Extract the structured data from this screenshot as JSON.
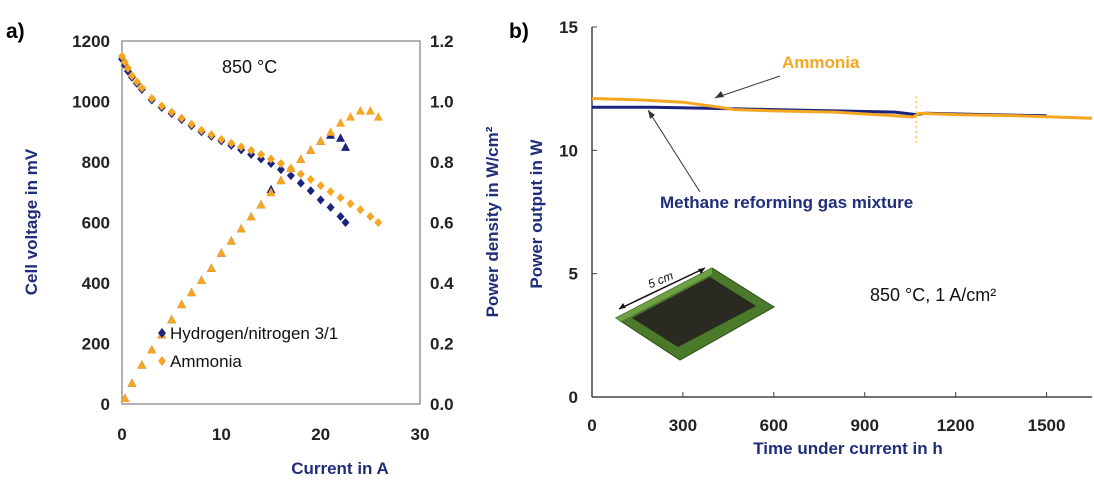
{
  "chart_data": [
    {
      "type": "scatter",
      "panel_label": "a)",
      "annotation": "850 °C",
      "xlabel": "Current in A",
      "ylabel": "Cell voltage in mV",
      "y2label": "Power density in W/cm²",
      "xlim": [
        0,
        30
      ],
      "ylim": [
        0,
        1200
      ],
      "y2lim": [
        0.0,
        1.2
      ],
      "xticks": [
        "0",
        "10",
        "20",
        "30"
      ],
      "yticks": [
        "0",
        "200",
        "400",
        "600",
        "800",
        "1000",
        "1200"
      ],
      "y2ticks": [
        "0.0",
        "0.2",
        "0.4",
        "0.6",
        "0.8",
        "1.0",
        "1.2"
      ],
      "legend_position": "bottom-left",
      "colors": {
        "hydrogen": "#1a237e",
        "ammonia": "#f5a623"
      },
      "series": [
        {
          "name": "Hydrogen/nitrogen 3/1",
          "axis": "left",
          "marker": "diamond",
          "color": "#1a237e",
          "x": [
            0,
            0.3,
            0.6,
            1,
            1.5,
            2,
            3,
            4,
            5,
            6,
            7,
            8,
            9,
            10,
            11,
            12,
            13,
            14,
            15,
            16,
            17,
            18,
            19,
            20,
            21,
            22,
            22.5
          ],
          "y": [
            1140,
            1120,
            1100,
            1080,
            1060,
            1040,
            1005,
            980,
            960,
            940,
            920,
            900,
            885,
            870,
            855,
            840,
            825,
            810,
            795,
            775,
            755,
            730,
            705,
            675,
            650,
            620,
            600
          ]
        },
        {
          "name": "Hydrogen/nitrogen 3/1 (power density)",
          "axis": "right",
          "marker": "triangle",
          "color": "#1a237e",
          "x": [
            0.3,
            1,
            2,
            3,
            4,
            5,
            6,
            7,
            8,
            9,
            10,
            11,
            12,
            13,
            14,
            15,
            16,
            17,
            18,
            19,
            20,
            21,
            22,
            22.5
          ],
          "y": [
            0.02,
            0.07,
            0.13,
            0.18,
            0.23,
            0.28,
            0.33,
            0.37,
            0.41,
            0.45,
            0.5,
            0.54,
            0.58,
            0.62,
            0.66,
            0.71,
            0.74,
            0.78,
            0.81,
            0.84,
            0.87,
            0.89,
            0.88,
            0.85
          ]
        },
        {
          "name": "Ammonia",
          "axis": "left",
          "marker": "diamond",
          "color": "#f5a623",
          "x": [
            0,
            0.3,
            0.6,
            1,
            1.5,
            2,
            3,
            4,
            5,
            6,
            7,
            8,
            9,
            10,
            11,
            12,
            13,
            14,
            15,
            16,
            17,
            18,
            19,
            20,
            21,
            22,
            23,
            24,
            25,
            25.8
          ],
          "y": [
            1150,
            1130,
            1110,
            1085,
            1065,
            1045,
            1010,
            985,
            965,
            945,
            925,
            905,
            890,
            875,
            862,
            850,
            838,
            825,
            810,
            795,
            778,
            760,
            742,
            722,
            702,
            682,
            662,
            642,
            620,
            600
          ]
        },
        {
          "name": "Ammonia (power density)",
          "axis": "right",
          "marker": "triangle",
          "color": "#f5a623",
          "x": [
            0.3,
            1,
            2,
            3,
            4,
            5,
            6,
            7,
            8,
            9,
            10,
            11,
            12,
            13,
            14,
            15,
            16,
            17,
            18,
            19,
            20,
            21,
            22,
            23,
            24,
            25,
            25.8
          ],
          "y": [
            0.02,
            0.07,
            0.13,
            0.18,
            0.23,
            0.28,
            0.33,
            0.37,
            0.41,
            0.45,
            0.5,
            0.54,
            0.58,
            0.62,
            0.66,
            0.7,
            0.74,
            0.78,
            0.81,
            0.84,
            0.87,
            0.9,
            0.93,
            0.95,
            0.97,
            0.97,
            0.95
          ]
        }
      ]
    },
    {
      "type": "line",
      "panel_label": "b)",
      "annotation": "850 °C, 1 A/cm²",
      "inset_label": "5 cm",
      "xlabel": "Time under current in h",
      "ylabel": "Power output in W",
      "xlim": [
        0,
        1650
      ],
      "ylim": [
        0,
        15
      ],
      "xticks": [
        "0",
        "300",
        "600",
        "900",
        "1200",
        "1500"
      ],
      "yticks": [
        "0",
        "5",
        "10",
        "15"
      ],
      "colors": {
        "methane": "#1a237e",
        "ammonia": "#f5a623"
      },
      "series": [
        {
          "name": "Methane reforming gas mixture",
          "color": "#1a237e",
          "x": [
            0,
            200,
            400,
            600,
            800,
            1000,
            1070,
            1100,
            1300,
            1500
          ],
          "y": [
            11.75,
            11.75,
            11.7,
            11.65,
            11.6,
            11.55,
            11.45,
            11.5,
            11.45,
            11.4
          ]
        },
        {
          "name": "Ammonia",
          "color": "#f5a623",
          "x": [
            0,
            150,
            300,
            420,
            470,
            600,
            800,
            1000,
            1060,
            1080,
            1200,
            1400,
            1650
          ],
          "y": [
            12.1,
            12.05,
            11.95,
            11.75,
            11.65,
            11.6,
            11.55,
            11.4,
            11.35,
            11.5,
            11.45,
            11.4,
            11.3
          ]
        }
      ]
    }
  ]
}
